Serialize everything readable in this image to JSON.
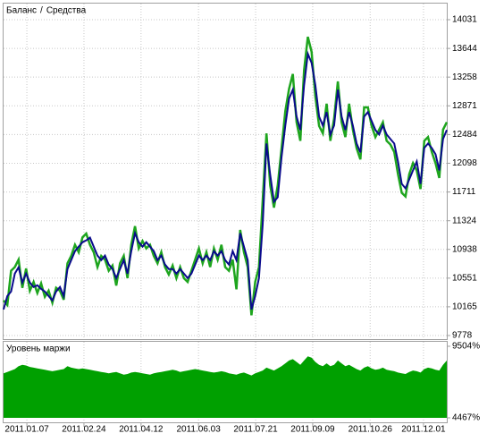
{
  "chart_data": [
    {
      "type": "line",
      "legend_separator": "/",
      "series": [
        {
          "name": "Баланс",
          "color": "#0a0a8c",
          "values": [
            10129,
            10310,
            10371,
            10612,
            10697,
            10492,
            10612,
            10492,
            10431,
            10455,
            10407,
            10371,
            10310,
            10250,
            10371,
            10431,
            10310,
            10673,
            10794,
            10914,
            10975,
            11035,
            11059,
            11096,
            10975,
            10854,
            10794,
            10854,
            10733,
            10673,
            10552,
            10673,
            10794,
            10612,
            10914,
            11156,
            11035,
            10975,
            11035,
            10975,
            10914,
            10794,
            10854,
            10733,
            10673,
            10673,
            10612,
            10673,
            10612,
            10552,
            10612,
            10733,
            10854,
            10794,
            10854,
            10794,
            10914,
            10854,
            10914,
            10794,
            10733,
            10914,
            10794,
            11156,
            10975,
            10794,
            10129,
            10310,
            10552,
            11277,
            12364,
            11941,
            11579,
            11639,
            12183,
            12606,
            12968,
            13089,
            12726,
            12545,
            13149,
            13572,
            13451,
            13149,
            12726,
            12606,
            12787,
            12485,
            12606,
            13089,
            12726,
            12545,
            12787,
            12606,
            12364,
            12243,
            12726,
            12787,
            12666,
            12545,
            12485,
            12606,
            12485,
            12424,
            12364,
            12122,
            11820,
            11760,
            11881,
            12002,
            12122,
            11820,
            12304,
            12364,
            12304,
            12219,
            12002,
            12424,
            12545
          ]
        },
        {
          "name": "Средства",
          "color": "#1ea51e",
          "values": [
            10250,
            10190,
            10650,
            10700,
            10800,
            10420,
            10680,
            10380,
            10500,
            10350,
            10480,
            10300,
            10380,
            10220,
            10420,
            10380,
            10260,
            10750,
            10850,
            11000,
            10900,
            11100,
            11150,
            11000,
            10900,
            10700,
            10850,
            10800,
            10650,
            10720,
            10450,
            10750,
            10850,
            10550,
            11000,
            11250,
            10950,
            11050,
            10950,
            11000,
            10850,
            10750,
            10900,
            10700,
            10600,
            10720,
            10550,
            10700,
            10550,
            10500,
            10650,
            10800,
            10950,
            10750,
            10900,
            10700,
            10950,
            10800,
            11000,
            10700,
            10650,
            10800,
            10400,
            11200,
            10900,
            10700,
            10050,
            10500,
            10700,
            11600,
            12500,
            11800,
            11500,
            11800,
            12300,
            12800,
            13100,
            13300,
            12650,
            12400,
            13350,
            13800,
            13600,
            13000,
            12600,
            12500,
            12900,
            12400,
            12700,
            13200,
            12650,
            12450,
            12900,
            12550,
            12300,
            12150,
            12850,
            12850,
            12600,
            12450,
            12550,
            12650,
            12400,
            12350,
            12250,
            11950,
            11700,
            11650,
            11950,
            12100,
            12000,
            11750,
            12400,
            12450,
            12250,
            12100,
            11900,
            12550,
            12650
          ]
        }
      ],
      "xlim": [
        0,
        118
      ],
      "xticks": [
        {
          "value": 6.2,
          "label": "2011.01.07"
        },
        {
          "value": 21.4,
          "label": "2011.02.24"
        },
        {
          "value": 36.6,
          "label": "2011.04.12"
        },
        {
          "value": 51.9,
          "label": "2011.06.03"
        },
        {
          "value": 67.1,
          "label": "2011.07.21"
        },
        {
          "value": 82.3,
          "label": "2011.09.09"
        },
        {
          "value": 97.6,
          "label": "2011.10.26"
        },
        {
          "value": 111.8,
          "label": "2011.12.01"
        }
      ],
      "ylim": [
        9742,
        14248
      ],
      "yticks": [
        9778,
        10165,
        10551,
        10938,
        11324,
        11711,
        12098,
        12484,
        12871,
        13258,
        13644,
        14031
      ],
      "grid": true
    },
    {
      "type": "area",
      "title": "Уровень маржи",
      "color": "#00a000",
      "values": [
        7600,
        7700,
        7800,
        7900,
        8100,
        8200,
        8150,
        8050,
        8000,
        7950,
        7900,
        7850,
        7800,
        7750,
        7800,
        7850,
        7900,
        8100,
        8000,
        7950,
        7900,
        7950,
        7900,
        7850,
        7800,
        7750,
        7700,
        7650,
        7600,
        7650,
        7700,
        7600,
        7500,
        7550,
        7650,
        7700,
        7650,
        7600,
        7550,
        7500,
        7600,
        7650,
        7700,
        7750,
        7800,
        7850,
        7800,
        7700,
        7750,
        7800,
        7850,
        7900,
        7850,
        7800,
        7750,
        7700,
        7650,
        7700,
        7750,
        7700,
        7600,
        7550,
        7500,
        7600,
        7650,
        7550,
        7450,
        7600,
        7700,
        7800,
        8000,
        7900,
        7800,
        7950,
        8100,
        8300,
        8500,
        8600,
        8400,
        8200,
        8500,
        8800,
        8700,
        8400,
        8200,
        8100,
        8300,
        8100,
        8200,
        8500,
        8300,
        8100,
        8200,
        8050,
        7900,
        7800,
        8000,
        8100,
        7950,
        7850,
        7900,
        8000,
        7850,
        7800,
        7750,
        7650,
        7600,
        7550,
        7700,
        7800,
        7750,
        7650,
        7900,
        8000,
        7950,
        7850,
        7800,
        8200,
        8500
      ],
      "xlim": [
        0,
        118
      ],
      "ylim": [
        4467,
        9504
      ],
      "yticks": [
        {
          "value": 4467,
          "label": "4467%"
        },
        {
          "value": 9504,
          "label": "9504%"
        }
      ]
    }
  ]
}
